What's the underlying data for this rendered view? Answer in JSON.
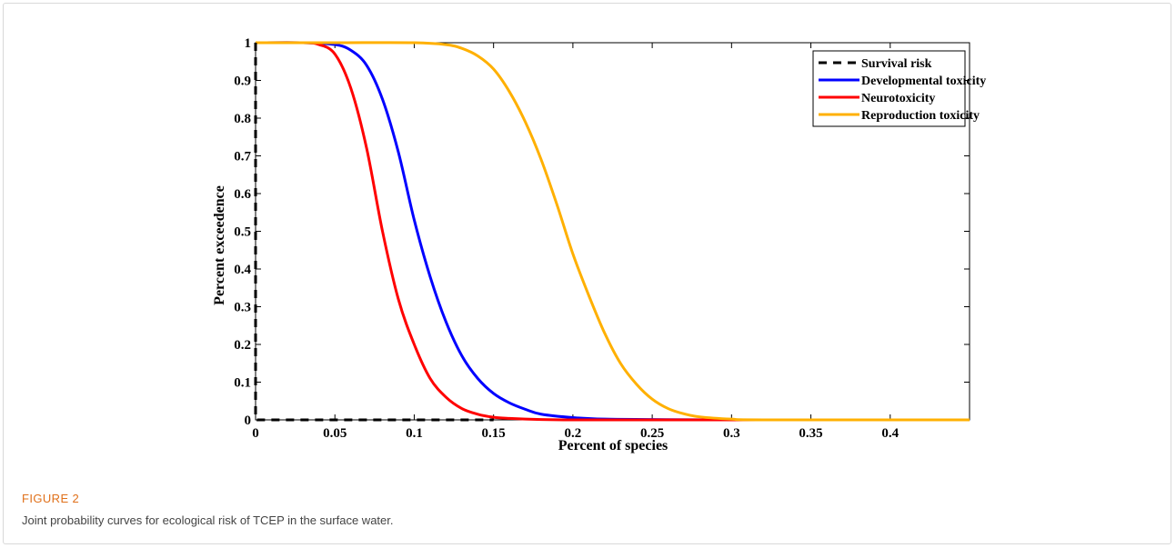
{
  "figure": {
    "label": "FIGURE 2",
    "caption": "Joint probability curves for ecological risk of TCEP in the surface water."
  },
  "chart_data": {
    "type": "line",
    "title": "",
    "xlabel": "Percent of species",
    "ylabel": "Percent exceedence",
    "xlim": [
      0,
      0.45
    ],
    "ylim": [
      0,
      1
    ],
    "x_ticks": [
      0,
      0.05,
      0.1,
      0.15,
      0.2,
      0.25,
      0.3,
      0.35,
      0.4
    ],
    "x_tick_labels": [
      "0",
      "0.05",
      "0.1",
      "0.15",
      "0.2",
      "0.25",
      "0.3",
      "0.35",
      "0.4"
    ],
    "y_ticks": [
      0,
      0.1,
      0.2,
      0.3,
      0.4,
      0.5,
      0.6,
      0.7,
      0.8,
      0.9,
      1
    ],
    "y_tick_labels": [
      "0",
      "0.1",
      "0.2",
      "0.3",
      "0.4",
      "0.5",
      "0.6",
      "0.7",
      "0.8",
      "0.9",
      "1"
    ],
    "grid": false,
    "legend_position": "top-right",
    "series": [
      {
        "name": "Survival risk",
        "color": "#000000",
        "dashed": true,
        "x": [
          0,
          0,
          0.001,
          0.15
        ],
        "y": [
          1,
          0.001,
          0,
          0
        ]
      },
      {
        "name": "Developmental toxicity",
        "color": "#0000ff",
        "dashed": false,
        "x": [
          0,
          0.03,
          0.05,
          0.06,
          0.07,
          0.08,
          0.09,
          0.1,
          0.11,
          0.12,
          0.13,
          0.14,
          0.15,
          0.16,
          0.17,
          0.18,
          0.2,
          0.22,
          0.25,
          0.3,
          0.45
        ],
        "y": [
          1,
          1,
          0.995,
          0.98,
          0.94,
          0.85,
          0.71,
          0.53,
          0.38,
          0.26,
          0.17,
          0.11,
          0.07,
          0.045,
          0.028,
          0.015,
          0.006,
          0.002,
          0.001,
          0,
          0
        ]
      },
      {
        "name": "Neurotoxicity",
        "color": "#ff0000",
        "dashed": false,
        "x": [
          0,
          0.03,
          0.04,
          0.05,
          0.06,
          0.07,
          0.08,
          0.09,
          0.1,
          0.11,
          0.12,
          0.13,
          0.14,
          0.15,
          0.16,
          0.18,
          0.2,
          0.25,
          0.45
        ],
        "y": [
          1,
          1,
          0.995,
          0.97,
          0.88,
          0.72,
          0.5,
          0.32,
          0.2,
          0.11,
          0.06,
          0.03,
          0.015,
          0.007,
          0.004,
          0.001,
          0,
          0,
          0
        ]
      },
      {
        "name": "Reproduction toxicity",
        "color": "#ffb000",
        "dashed": false,
        "x": [
          0,
          0.05,
          0.1,
          0.12,
          0.13,
          0.14,
          0.15,
          0.16,
          0.17,
          0.18,
          0.19,
          0.2,
          0.21,
          0.22,
          0.23,
          0.24,
          0.25,
          0.26,
          0.27,
          0.28,
          0.3,
          0.32,
          0.45
        ],
        "y": [
          1,
          1,
          1,
          0.995,
          0.985,
          0.965,
          0.93,
          0.87,
          0.79,
          0.69,
          0.57,
          0.44,
          0.33,
          0.23,
          0.15,
          0.095,
          0.055,
          0.03,
          0.016,
          0.008,
          0.002,
          0,
          0
        ]
      }
    ]
  }
}
